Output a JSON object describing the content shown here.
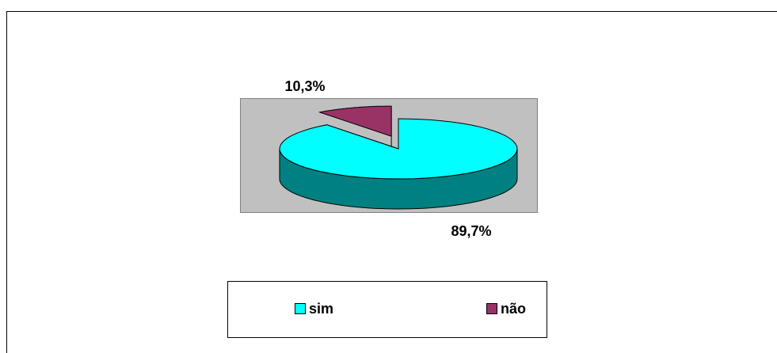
{
  "chart_data": {
    "type": "pie",
    "three_d": true,
    "categories": [
      "sim",
      "não"
    ],
    "values": [
      89.7,
      10.3
    ],
    "value_labels": [
      "89,7%",
      "10,3%"
    ],
    "colors": [
      "#00ffff",
      "#993366"
    ],
    "legend": "bottom"
  }
}
